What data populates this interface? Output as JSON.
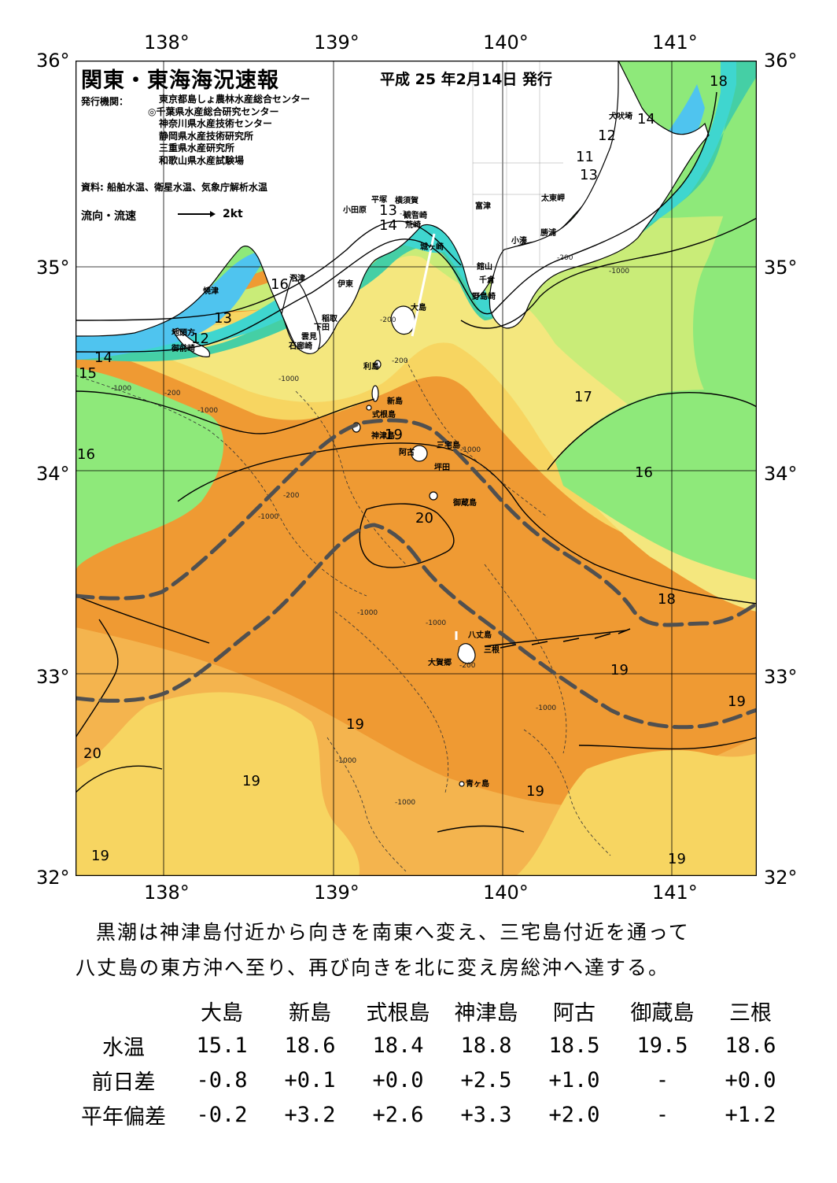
{
  "map": {
    "title": "関東・東海海況速報",
    "issue_date": "平成 25 年2月14日 発行",
    "publisher_label": "発行機関：",
    "publishers": [
      "東京都島しょ農林水産総合センター",
      "◎千葉県水産総合研究センター",
      "神奈川県水産技術センター",
      "静岡県水産技術研究所",
      "三重県水産研究所",
      "和歌山県水産試験場"
    ],
    "sources": "資料: 船舶水温、衛星水温、気象庁解析水温",
    "flow_label": "流向・流速",
    "flow_unit": "2kt",
    "longitude_ticks": [
      "138°",
      "139°",
      "140°",
      "141°"
    ],
    "latitude_ticks": [
      "36°",
      "35°",
      "34°",
      "33°",
      "32°"
    ],
    "palette": {
      "cold_blue": "#4fc4ef",
      "cyan": "#3fd6cf",
      "teal": "#45cfa5",
      "green": "#8ee97a",
      "yellow_green": "#c9ec78",
      "pale_yellow": "#f4e77e",
      "yellow": "#f7d561",
      "light_orange": "#f4b44e",
      "orange": "#ef9a33",
      "land": "#ffffff",
      "kuroshio_axis": "#505050"
    },
    "place_names": [
      "犬吠埼",
      "太東岬",
      "勝浦",
      "小湊",
      "富津",
      "横須賀",
      "観音崎",
      "平塚",
      "小田原",
      "荒崎",
      "城ヶ崎",
      "館山",
      "千倉",
      "野島崎",
      "沼津",
      "伊東",
      "稲取",
      "下田",
      "雲見",
      "石廊崎",
      "焼津",
      "地頭方",
      "御前崎",
      "大島",
      "利島",
      "新島",
      "式根島",
      "神津島",
      "三宅島",
      "阿古",
      "坪田",
      "御蔵島",
      "八丈島",
      "大賀郷",
      "三根",
      "青ヶ島"
    ],
    "isotherm_labels": [
      "18",
      "14",
      "12",
      "11",
      "13",
      "13",
      "14",
      "16",
      "13",
      "12",
      "14",
      "15",
      "16",
      "17",
      "16",
      "19",
      "20",
      "18",
      "19",
      "19",
      "19",
      "20",
      "19",
      "19",
      "19",
      "19"
    ],
    "depth_labels": [
      "-200",
      "-1000"
    ]
  },
  "summary": {
    "line1": "黒潮は神津島付近から向きを南東へ変え、三宅島付近を通って",
    "line2": "八丈島の東方沖へ至り、再び向きを北に変え房総沖へ達する。"
  },
  "table": {
    "stations": [
      "大島",
      "新島",
      "式根島",
      "神津島",
      "阿古",
      "御蔵島",
      "三根"
    ],
    "rows": [
      {
        "label": "水温",
        "values": [
          "15.1",
          "18.6",
          "18.4",
          "18.8",
          "18.5",
          "19.5",
          "18.6"
        ]
      },
      {
        "label": "前日差",
        "values": [
          "-0.8",
          "+0.1",
          "+0.0",
          "+2.5",
          "+1.0",
          "-",
          "+0.0"
        ]
      },
      {
        "label": "平年偏差",
        "values": [
          "-0.2",
          "+3.2",
          "+2.6",
          "+3.3",
          "+2.0",
          "-",
          "+1.2"
        ]
      }
    ]
  }
}
